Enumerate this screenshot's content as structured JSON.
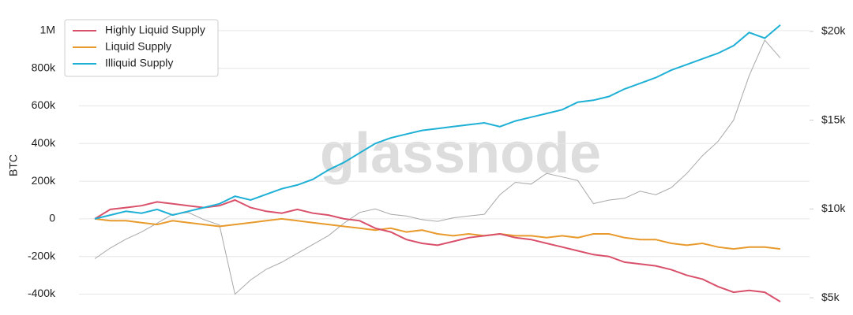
{
  "chart_data": {
    "type": "line",
    "y_label": "BTC",
    "watermark": "glassnode",
    "ylim": [
      -490000,
      1100000
    ],
    "yticks": [
      {
        "value": 1000000,
        "label": "1M"
      },
      {
        "value": 800000,
        "label": "800k"
      },
      {
        "value": 600000,
        "label": "600k"
      },
      {
        "value": 400000,
        "label": "400k"
      },
      {
        "value": 200000,
        "label": "200k"
      },
      0,
      {
        "value": -200000,
        "label": "-200k"
      },
      {
        "value": -400000,
        "label": "-400k"
      }
    ],
    "y2lim": [
      4250,
      21100
    ],
    "y2ticks": [
      {
        "value": 20000,
        "label": "$20k"
      },
      {
        "value": 15000,
        "label": "$15k"
      },
      {
        "value": 10000,
        "label": "$10k"
      },
      {
        "value": 5000,
        "label": "$5k"
      }
    ],
    "grid": true,
    "legend": "upper-left",
    "series": [
      {
        "name": "Highly Liquid Supply",
        "color": "#d9506a",
        "values": [
          0,
          50000,
          60000,
          70000,
          90000,
          80000,
          70000,
          60000,
          70000,
          100000,
          60000,
          40000,
          30000,
          50000,
          30000,
          20000,
          0,
          -10000,
          -50000,
          -70000,
          -110000,
          -130000,
          -140000,
          -120000,
          -100000,
          -90000,
          -80000,
          -100000,
          -110000,
          -130000,
          -150000,
          -170000,
          -190000,
          -200000,
          -230000,
          -240000,
          -250000,
          -270000,
          -300000,
          -320000,
          -360000,
          -390000,
          -380000,
          -390000,
          -440000
        ]
      },
      {
        "name": "Liquid Supply",
        "color": "#e89a2c",
        "values": [
          0,
          -10000,
          -10000,
          -20000,
          -30000,
          -10000,
          -20000,
          -30000,
          -40000,
          -30000,
          -20000,
          -10000,
          0,
          -10000,
          -20000,
          -30000,
          -40000,
          -50000,
          -60000,
          -50000,
          -70000,
          -60000,
          -80000,
          -90000,
          -80000,
          -90000,
          -80000,
          -90000,
          -90000,
          -100000,
          -90000,
          -100000,
          -80000,
          -80000,
          -100000,
          -110000,
          -110000,
          -130000,
          -140000,
          -130000,
          -150000,
          -160000,
          -150000,
          -150000,
          -160000
        ]
      },
      {
        "name": "Illiquid Supply",
        "color": "#1fb0d6",
        "values": [
          0,
          20000,
          40000,
          30000,
          50000,
          20000,
          40000,
          60000,
          80000,
          120000,
          100000,
          130000,
          160000,
          180000,
          210000,
          260000,
          300000,
          350000,
          400000,
          430000,
          450000,
          470000,
          480000,
          490000,
          500000,
          510000,
          490000,
          520000,
          540000,
          560000,
          580000,
          620000,
          630000,
          650000,
          690000,
          720000,
          750000,
          790000,
          820000,
          850000,
          880000,
          920000,
          990000,
          960000,
          1030000
        ]
      },
      {
        "axis": "y2",
        "color": "#a8a8a8",
        "values": [
          7200,
          7800,
          8300,
          8700,
          9200,
          9700,
          9800,
          9400,
          9100,
          5200,
          6000,
          6600,
          7000,
          7500,
          8000,
          8500,
          9200,
          9800,
          10000,
          9700,
          9600,
          9400,
          9300,
          9500,
          9600,
          9700,
          10800,
          11500,
          11400,
          12000,
          11800,
          11600,
          10300,
          10500,
          10600,
          11000,
          10800,
          11200,
          12000,
          13000,
          13800,
          15000,
          17500,
          19500,
          18500
        ]
      }
    ]
  }
}
